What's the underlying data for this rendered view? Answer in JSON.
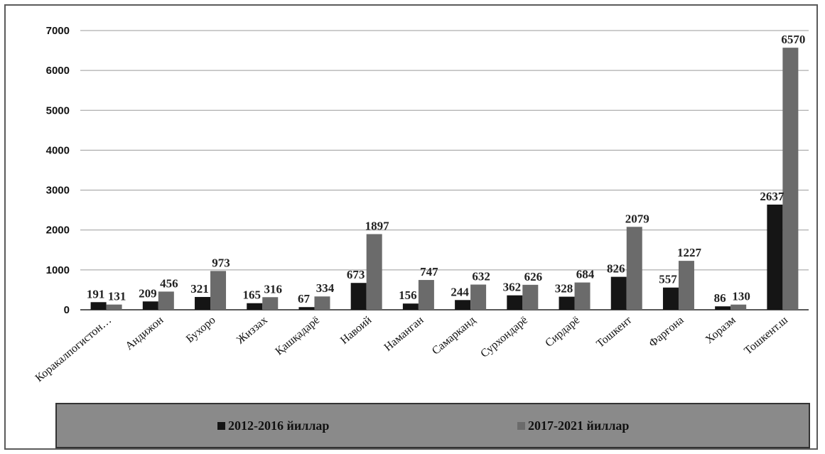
{
  "chart_data": {
    "type": "bar",
    "categories": [
      "Коракалпогистон…",
      "Андижон",
      "Бухоро",
      "Жиззах",
      "Қашқадарё",
      "Навоий",
      "Наманган",
      "Самарканд",
      "Сурхондарё",
      "Сирдарё",
      "Тошкент",
      "Фарғона",
      "Хоразм",
      "Тошкент.ш"
    ],
    "series": [
      {
        "name": "2012-2016 йиллар",
        "color": "#151515",
        "values": [
          191,
          209,
          321,
          165,
          67,
          673,
          156,
          244,
          362,
          328,
          826,
          557,
          86,
          2637
        ]
      },
      {
        "name": "2017-2021 йиллар",
        "color": "#6b6b6b",
        "values": [
          131,
          456,
          973,
          316,
          334,
          1897,
          747,
          632,
          626,
          684,
          2079,
          1227,
          130,
          6570
        ]
      }
    ],
    "yticks": [
      0,
      1000,
      2000,
      3000,
      4000,
      5000,
      6000,
      7000
    ],
    "ylim": [
      0,
      7000
    ],
    "grid": true,
    "legend_position": "bottom",
    "title": "",
    "xlabel": "",
    "ylabel": ""
  }
}
